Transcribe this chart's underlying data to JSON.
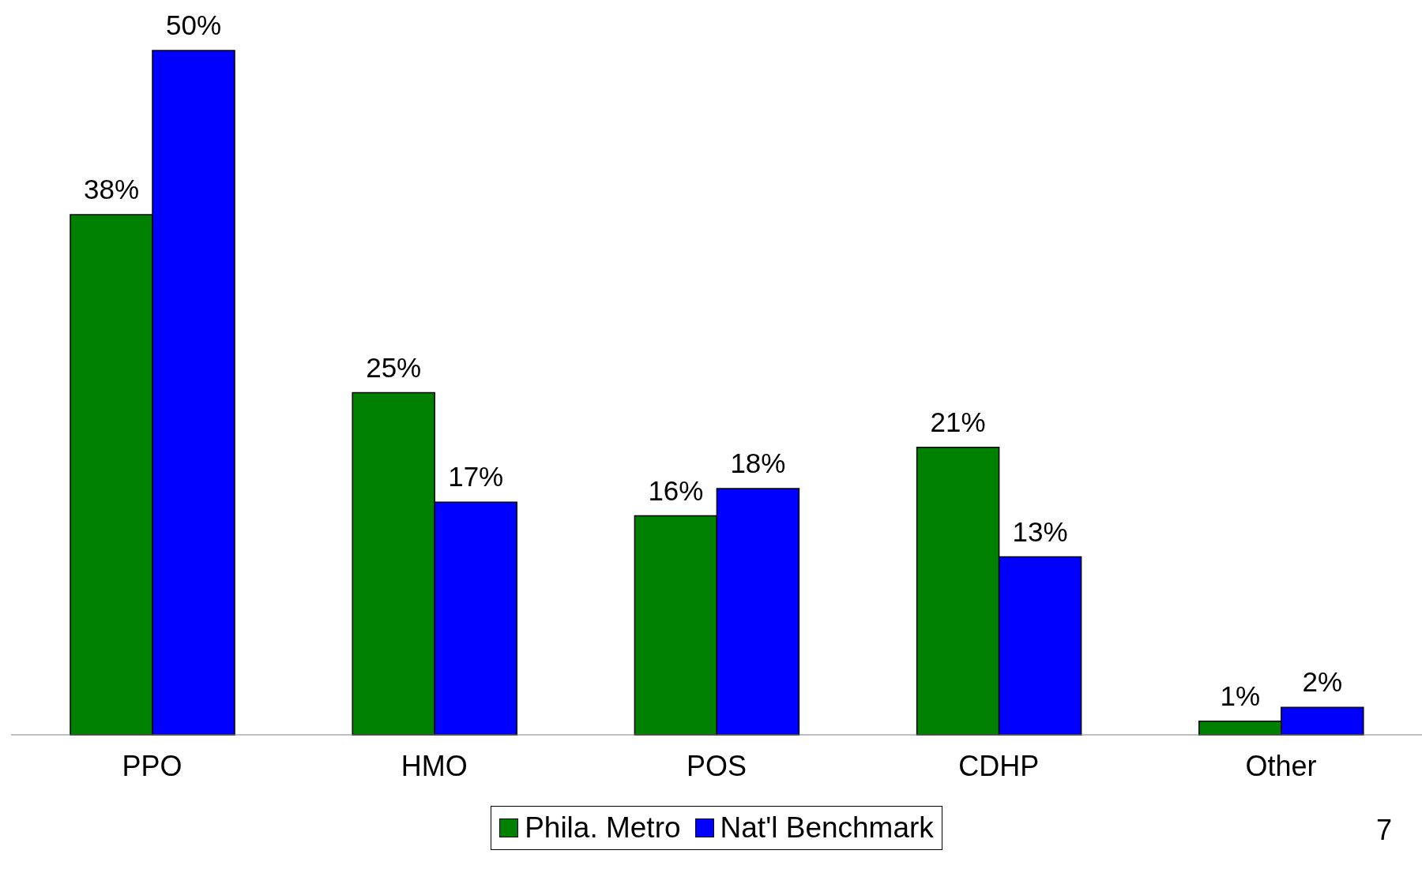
{
  "chart_data": {
    "type": "bar",
    "categories": [
      "PPO",
      "HMO",
      "POS",
      "CDHP",
      "Other"
    ],
    "series": [
      {
        "name": "Phila. Metro",
        "color": "#008000",
        "values": [
          38,
          25,
          16,
          21,
          1
        ],
        "value_labels": [
          "38%",
          "25%",
          "16%",
          "21%",
          "1%"
        ]
      },
      {
        "name": "Nat'l Benchmark",
        "color": "#0000ff",
        "values": [
          50,
          17,
          18,
          13,
          2
        ],
        "value_labels": [
          "50%",
          "17%",
          "18%",
          "13%",
          "2%"
        ]
      }
    ],
    "legend": "bottom",
    "annotations": [
      "7"
    ]
  }
}
